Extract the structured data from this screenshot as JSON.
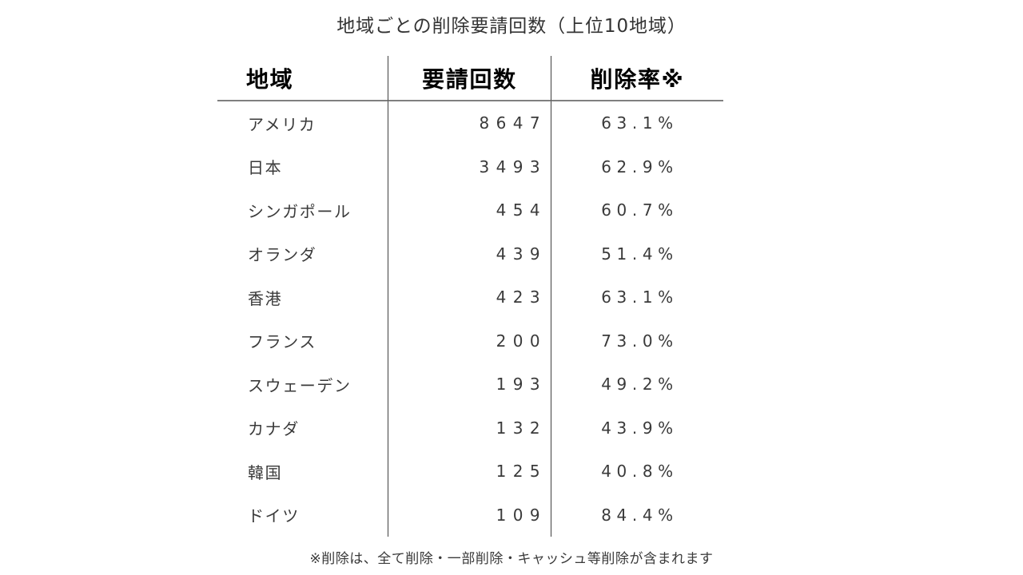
{
  "page": {
    "background_color": "#ffffff",
    "body_text_color": "#3a3a3a",
    "header_text_color": "#000000",
    "horizontal_rule_color": "#7f7f7f",
    "vertical_rule_color": "#404040"
  },
  "chart_data": {
    "type": "table",
    "title": "地域ごとの削除要請回数（上位10地域）",
    "columns": [
      "地域",
      "要請回数",
      "削除率※"
    ],
    "rows": [
      {
        "region": "アメリカ",
        "requests": 8647,
        "removal_rate_pct": 63.1
      },
      {
        "region": "日本",
        "requests": 3493,
        "removal_rate_pct": 62.9
      },
      {
        "region": "シンガポール",
        "requests": 454,
        "removal_rate_pct": 60.7
      },
      {
        "region": "オランダ",
        "requests": 439,
        "removal_rate_pct": 51.4
      },
      {
        "region": "香港",
        "requests": 423,
        "removal_rate_pct": 63.1
      },
      {
        "region": "フランス",
        "requests": 200,
        "removal_rate_pct": 73.0
      },
      {
        "region": "スウェーデン",
        "requests": 193,
        "removal_rate_pct": 49.2
      },
      {
        "region": "カナダ",
        "requests": 132,
        "removal_rate_pct": 43.9
      },
      {
        "region": "韓国",
        "requests": 125,
        "removal_rate_pct": 40.8
      },
      {
        "region": "ドイツ",
        "requests": 109,
        "removal_rate_pct": 84.4
      }
    ],
    "footnote": "※削除は、全て削除・一部削除・キャッシュ等削除が含まれます"
  }
}
